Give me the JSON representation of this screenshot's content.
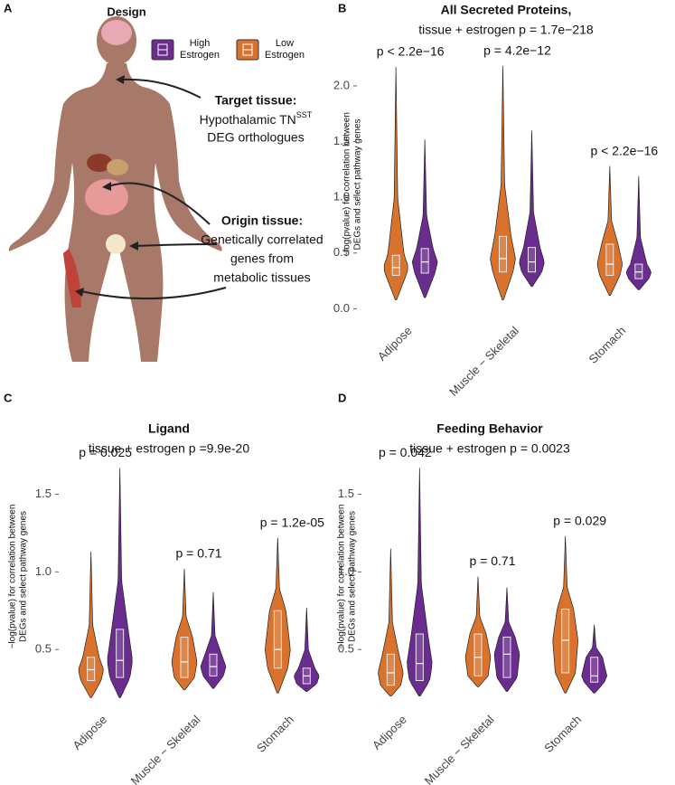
{
  "panel_letters": [
    "A",
    "B",
    "C",
    "D"
  ],
  "design": {
    "title": "Design",
    "target": {
      "heading": "Target tissue:",
      "line1": "Hypothalamic TN",
      "line1_sup": "SST",
      "line2": "DEG orthologues"
    },
    "origin": {
      "heading": "Origin tissue:",
      "lines": [
        "Genetically correlated",
        "genes from",
        "metabolic tissues"
      ]
    }
  },
  "chart_data": [
    {
      "type": "violin",
      "title": "All Secreted Proteins,",
      "subtitle": "tissue + estrogen p  = 1.7e−218",
      "ylabel": [
        "−log(pvalue) for correlation between",
        "DEGs and select pathway genes"
      ],
      "categories": [
        "Adipose",
        "Muscle − Skeletal",
        "Stomach"
      ],
      "annotations": [
        "p < 2.2e−16",
        "p = 4.2e−12",
        "p < 2.2e−16"
      ],
      "ylim": [
        -0.07,
        2.3
      ],
      "yticks": [
        {
          "value": 0,
          "label": "0.0"
        },
        0.5,
        {
          "value": 1,
          "label": "1.0"
        },
        1.5,
        {
          "value": 2,
          "label": "2.0"
        }
      ],
      "series": [
        {
          "name": "Low Estrogen",
          "color": "#d8722c",
          "min": [
            0.08,
            0.08,
            0.12
          ],
          "q1": [
            0.3,
            0.33,
            0.3
          ],
          "median": [
            0.37,
            0.45,
            0.4
          ],
          "q3": [
            0.48,
            0.65,
            0.58
          ],
          "max": [
            2.17,
            2.18,
            1.28
          ]
        },
        {
          "name": "High Estrogen",
          "color": "#6a2c8f",
          "min": [
            0.1,
            0.2,
            0.17
          ],
          "q1": [
            0.32,
            0.33,
            0.27
          ],
          "median": [
            0.42,
            0.42,
            0.33
          ],
          "q3": [
            0.54,
            0.55,
            0.4
          ],
          "max": [
            1.52,
            1.6,
            1.19
          ]
        }
      ]
    },
    {
      "type": "violin",
      "title": "Ligand",
      "subtitle": "tissue + estrogen p =9.9e-20",
      "ylabel": [
        "−log(pvalue) for correlation between",
        "DEGs and select pathway genes"
      ],
      "categories": [
        "Adipose",
        "Muscle − Skeletal",
        "Stomach"
      ],
      "annotations": [
        "p = 0.025",
        "p = 0.71",
        "p = 1.2e-05"
      ],
      "ylim": [
        0.14,
        1.8
      ],
      "yticks": [
        0.5,
        {
          "value": 1,
          "label": "1.0"
        },
        1.5
      ],
      "series": [
        {
          "color": "#d8722c",
          "min": [
            0.19,
            0.24,
            0.22
          ],
          "q1": [
            0.3,
            0.32,
            0.38
          ],
          "median": [
            0.37,
            0.42,
            0.5
          ],
          "q3": [
            0.45,
            0.58,
            0.75
          ],
          "max": [
            1.13,
            1.02,
            1.22
          ]
        },
        {
          "color": "#6a2c8f",
          "min": [
            0.19,
            0.25,
            0.23
          ],
          "q1": [
            0.32,
            0.33,
            0.28
          ],
          "median": [
            0.43,
            0.39,
            0.33
          ],
          "q3": [
            0.63,
            0.47,
            0.38
          ],
          "max": [
            1.67,
            0.87,
            0.77
          ]
        }
      ]
    },
    {
      "type": "violin",
      "title": "Feeding Behavior",
      "subtitle": "tissue + estrogen p = 0.0023",
      "ylabel": [
        "−log(pvalue) for correlation between",
        "DEGs and select pathway genes"
      ],
      "categories": [
        "Adipose",
        "Muscle − Skeletal",
        "Stomach"
      ],
      "annotations": [
        "p = 0.042",
        "p = 0.71",
        "p = 0.029"
      ],
      "ylim": [
        0.14,
        1.8
      ],
      "yticks": [
        0.5,
        {
          "value": 1,
          "label": "1.0"
        },
        1.5
      ],
      "series": [
        {
          "color": "#d8722c",
          "min": [
            0.2,
            0.26,
            0.22
          ],
          "q1": [
            0.27,
            0.33,
            0.35
          ],
          "median": [
            0.35,
            0.45,
            0.56
          ],
          "q3": [
            0.47,
            0.6,
            0.76
          ],
          "max": [
            1.15,
            0.97,
            1.23
          ]
        },
        {
          "color": "#6a2c8f",
          "min": [
            0.2,
            0.23,
            0.22
          ],
          "q1": [
            0.3,
            0.32,
            0.29
          ],
          "median": [
            0.41,
            0.47,
            0.33
          ],
          "q3": [
            0.6,
            0.58,
            0.45
          ],
          "max": [
            1.67,
            0.9,
            0.66
          ]
        }
      ]
    }
  ]
}
